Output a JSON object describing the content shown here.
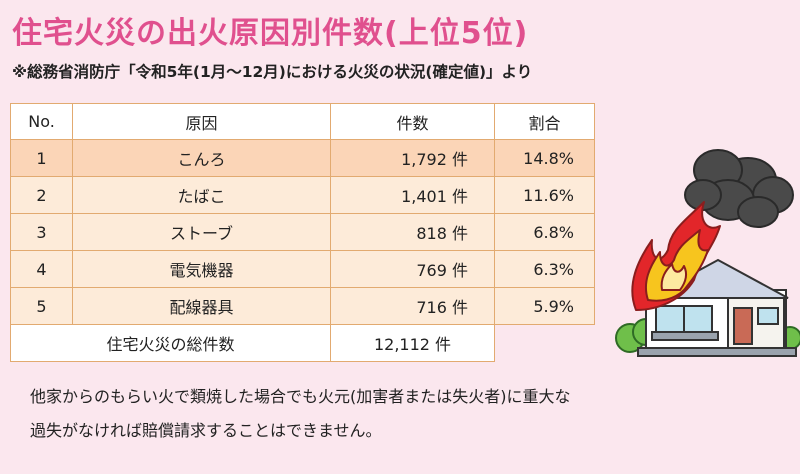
{
  "title": "住宅火災の出火原因別件数(上位5位)",
  "subtitle": "※総務省消防庁「令和5年(1月〜12月)における火災の状況(確定値)」より",
  "table": {
    "headers": {
      "no": "No.",
      "cause": "原因",
      "count": "件数",
      "rate": "割合"
    },
    "rows": [
      {
        "no": "1",
        "cause": "こんろ",
        "count": "1,792 件",
        "rate": "14.8%"
      },
      {
        "no": "2",
        "cause": "たばこ",
        "count": "1,401 件",
        "rate": "11.6%"
      },
      {
        "no": "3",
        "cause": "ストーブ",
        "count": "818 件",
        "rate": "6.8%"
      },
      {
        "no": "4",
        "cause": "電気機器",
        "count": "769 件",
        "rate": "6.3%"
      },
      {
        "no": "5",
        "cause": "配線器具",
        "count": "716 件",
        "rate": "5.9%"
      }
    ],
    "total": {
      "label": "住宅火災の総件数",
      "value": "12,112 件"
    }
  },
  "note": {
    "line1": "他家からのもらい火で類焼した場合でも火元(加害者または失火者)に重大な",
    "line2": "過失がなければ賠償請求することはできません。"
  },
  "colors": {
    "title": "#e0508e",
    "background": "#fbe7ee",
    "row_highlight": "#fbd5b7",
    "row": "#fdebd9",
    "border": "#e2aa70"
  },
  "illustration": "burning-house-icon"
}
